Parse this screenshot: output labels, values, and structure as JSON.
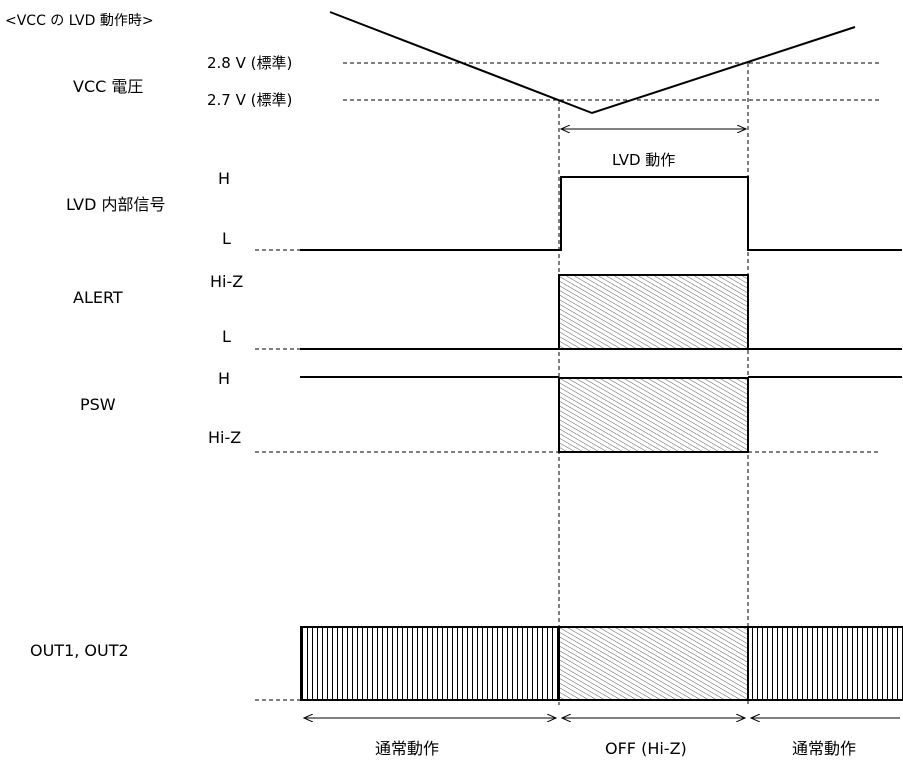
{
  "title": "<VCC の LVD 動作時>",
  "vcc": {
    "label": "VCC 電圧",
    "level_high": "2.8 V (標準)",
    "level_low": "2.7 V (標準)"
  },
  "lvd_period_label": "LVD 動作",
  "lvd_signal": {
    "label": "LVD 内部信号",
    "high": "H",
    "low": "L"
  },
  "alert": {
    "label": "ALERT",
    "high": "Hi-Z",
    "low": "L"
  },
  "psw": {
    "label": "PSW",
    "high": "H",
    "low": "Hi-Z"
  },
  "out": {
    "label": "OUT1, OUT2"
  },
  "phases": [
    "通常動作",
    "OFF (Hi-Z)",
    "通常動作"
  ]
}
